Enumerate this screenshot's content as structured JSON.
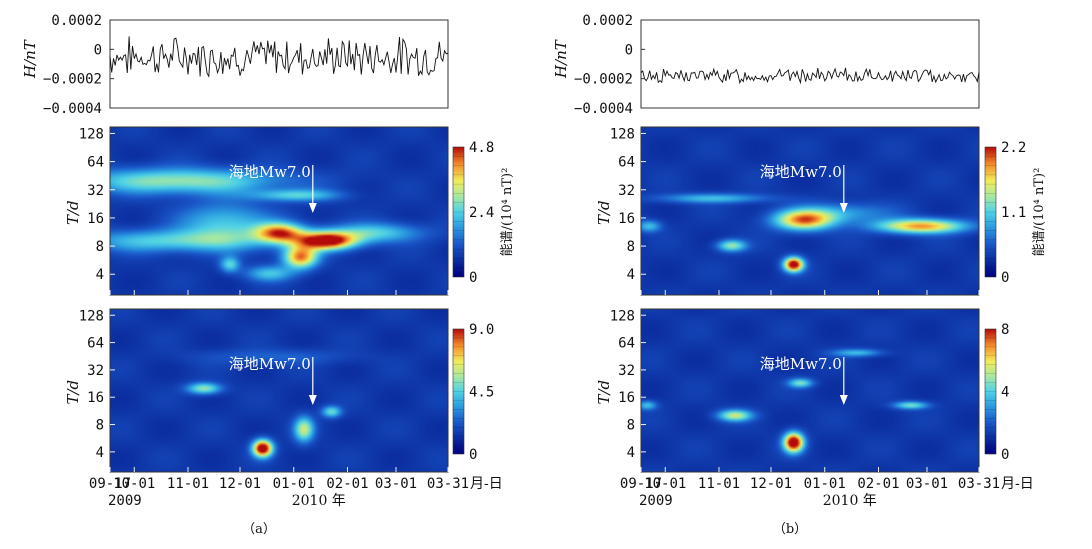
{
  "panels": [
    {
      "caption": "（a）",
      "signal": {
        "ylabel": "H/nT",
        "yticks": [
          "0.0002",
          "0",
          "−0.0002",
          "−0.0004"
        ],
        "ytick_values": [
          0.0002,
          0,
          -0.0002,
          -0.0004
        ],
        "ylim": [
          -0.0004,
          0.0002
        ],
        "mean": -5e-05,
        "amplitude": 0.00011,
        "seed": 7
      },
      "spectrograms": [
        {
          "ylabel": "T/d",
          "yticks": [
            "128",
            "64",
            "32",
            "16",
            "8",
            "4"
          ],
          "colorbar_ticks": [
            "4.8",
            "2.4",
            "0"
          ],
          "colorbar_label": "能谱/(10⁴ nT)²",
          "annotation": "海地Mw7.0",
          "blobs": [
            {
              "date": "2009-10-26",
              "period": 40,
              "w": 42,
              "h": 0.32,
              "v": 0.45
            },
            {
              "date": "2009-10-24",
              "period": 9,
              "w": 40,
              "h": 0.28,
              "v": 0.35
            },
            {
              "date": "2009-11-22",
              "period": 14,
              "w": 18,
              "h": 0.5,
              "v": 0.33
            },
            {
              "date": "2009-12-24",
              "period": 11,
              "w": 10,
              "h": 0.25,
              "v": 0.7
            },
            {
              "date": "2010-01-20",
              "period": 9,
              "w": 12,
              "h": 0.22,
              "v": 0.92
            },
            {
              "date": "2010-01-05",
              "period": 6,
              "w": 7,
              "h": 0.28,
              "v": 0.72
            },
            {
              "date": "2010-01-02",
              "period": 28,
              "w": 18,
              "h": 0.15,
              "v": 0.33
            },
            {
              "date": "2010-02-16",
              "period": 11,
              "w": 20,
              "h": 0.25,
              "v": 0.35
            },
            {
              "date": "2009-12-18",
              "period": 4,
              "w": 10,
              "h": 0.2,
              "v": 0.3
            },
            {
              "date": "2009-11-25",
              "period": 5,
              "w": 4,
              "h": 0.2,
              "v": 0.35
            }
          ]
        },
        {
          "ylabel": "T/d",
          "yticks": [
            "128",
            "64",
            "32",
            "16",
            "8",
            "4"
          ],
          "colorbar_ticks": [
            "9.0",
            "4.5",
            "0"
          ],
          "colorbar_label": "",
          "annotation": "海地Mw7.0",
          "blobs": [
            {
              "date": "2009-11-10",
              "period": 20,
              "w": 7,
              "h": 0.15,
              "v": 0.45
            },
            {
              "date": "2009-12-14",
              "period": 4.3,
              "w": 4,
              "h": 0.22,
              "v": 1.0
            },
            {
              "date": "2010-01-07",
              "period": 7,
              "w": 4,
              "h": 0.32,
              "v": 0.5
            },
            {
              "date": "2010-01-23",
              "period": 11,
              "w": 4,
              "h": 0.15,
              "v": 0.38
            },
            {
              "date": "2009-12-20",
              "period": 45,
              "w": 30,
              "h": 0.2,
              "v": 0.12
            }
          ]
        }
      ]
    },
    {
      "caption": "（b）",
      "signal": {
        "ylabel": "H/nT",
        "yticks": [
          "0.0002",
          "0",
          "−0.0002",
          "−0.0004"
        ],
        "ytick_values": [
          0.0002,
          0,
          -0.0002,
          -0.0004
        ],
        "ylim": [
          -0.0004,
          0.0002
        ],
        "mean": -0.00018,
        "amplitude": 4e-05,
        "seed": 13
      },
      "spectrograms": [
        {
          "ylabel": "T/d",
          "yticks": [
            "128",
            "64",
            "32",
            "16",
            "8",
            "4"
          ],
          "colorbar_ticks": [
            "2.2",
            "1.1",
            "0"
          ],
          "colorbar_label": "能谱/(10⁴ nT)²",
          "annotation": "海地Mw7.0",
          "blobs": [
            {
              "date": "2009-10-28",
              "period": 26,
              "w": 22,
              "h": 0.12,
              "v": 0.3
            },
            {
              "date": "2009-12-20",
              "period": 15,
              "w": 12,
              "h": 0.25,
              "v": 0.7
            },
            {
              "date": "2010-02-26",
              "period": 13,
              "w": 18,
              "h": 0.18,
              "v": 0.7
            },
            {
              "date": "2009-11-08",
              "period": 8,
              "w": 6,
              "h": 0.15,
              "v": 0.45
            },
            {
              "date": "2009-12-14",
              "period": 5,
              "w": 4,
              "h": 0.18,
              "v": 0.95
            },
            {
              "date": "2009-09-21",
              "period": 13,
              "w": 5,
              "h": 0.15,
              "v": 0.3
            },
            {
              "date": "2010-01-10",
              "period": 18,
              "w": 20,
              "h": 0.25,
              "v": 0.25
            }
          ]
        },
        {
          "ylabel": "T/d",
          "yticks": [
            "128",
            "64",
            "32",
            "16",
            "8",
            "4"
          ],
          "colorbar_ticks": [
            "8",
            "4",
            "0"
          ],
          "colorbar_label": "",
          "annotation": "海地Mw7.0",
          "blobs": [
            {
              "date": "2009-12-14",
              "period": 5,
              "w": 4,
              "h": 0.25,
              "v": 1.0
            },
            {
              "date": "2009-11-10",
              "period": 10,
              "w": 7,
              "h": 0.15,
              "v": 0.5
            },
            {
              "date": "2009-12-18",
              "period": 23,
              "w": 5,
              "h": 0.12,
              "v": 0.4
            },
            {
              "date": "2010-01-20",
              "period": 50,
              "w": 10,
              "h": 0.1,
              "v": 0.3
            },
            {
              "date": "2010-02-20",
              "period": 13,
              "w": 7,
              "h": 0.1,
              "v": 0.4
            },
            {
              "date": "2009-09-20",
              "period": 13,
              "w": 4,
              "h": 0.12,
              "v": 0.3
            }
          ]
        }
      ]
    }
  ],
  "xaxis": {
    "ticks": [
      "09-17",
      "10-01",
      "11-01",
      "12-01",
      "01-01",
      "02-01",
      "03-01",
      "03-31"
    ],
    "tick_dates": [
      "2009-09-17",
      "2009-10-01",
      "2009-11-01",
      "2009-12-01",
      "2010-01-01",
      "2010-02-01",
      "2010-03-01",
      "2010-03-31"
    ],
    "unit": "月-日",
    "year_2009": "2009",
    "year_2010": "2010 年",
    "earthquake_date": "2010-01-12"
  },
  "chart_data": [
    {
      "type": "line",
      "title": "",
      "xlabel": "",
      "ylabel": "H/nT",
      "xlim": [
        "2009-09-17",
        "2010-03-31"
      ],
      "ylim": [
        -0.0004,
        0.0002
      ],
      "grid": false
    },
    {
      "type": "heatmap",
      "title": "",
      "ylabel": "T/d",
      "colorbar_max": 4.8,
      "colorbar_label": "能谱/(10⁴ nT)²",
      "annotation": "海地Mw7.0"
    },
    {
      "type": "heatmap",
      "title": "",
      "ylabel": "T/d",
      "colorbar_max": 9.0,
      "annotation": "海地Mw7.0"
    },
    {
      "type": "line",
      "title": "",
      "xlabel": "",
      "ylabel": "H/nT",
      "xlim": [
        "2009-09-17",
        "2010-03-31"
      ],
      "ylim": [
        -0.0004,
        0.0002
      ],
      "grid": false
    },
    {
      "type": "heatmap",
      "title": "",
      "ylabel": "T/d",
      "colorbar_max": 2.2,
      "colorbar_label": "能谱/(10⁴ nT)²",
      "annotation": "海地Mw7.0"
    },
    {
      "type": "heatmap",
      "title": "",
      "ylabel": "T/d",
      "colorbar_max": 8,
      "annotation": "海地Mw7.0"
    }
  ]
}
